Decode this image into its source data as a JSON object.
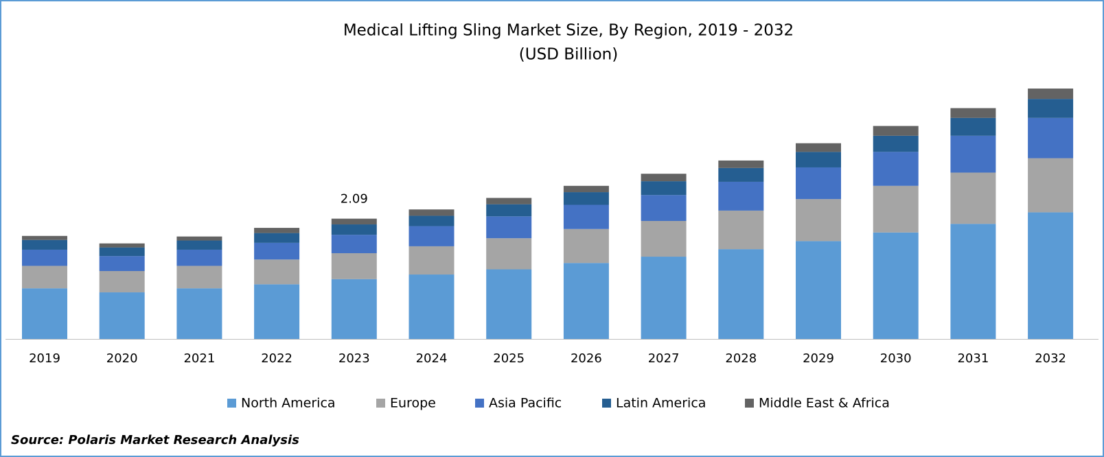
{
  "chart_data": {
    "type": "stacked_bar",
    "title": "Medical Lifting Sling Market Size, By Region, 2019 - 2032",
    "subtitle": "(USD Billion)",
    "categories": [
      "2019",
      "2020",
      "2021",
      "2022",
      "2023",
      "2024",
      "2025",
      "2026",
      "2027",
      "2028",
      "2029",
      "2030",
      "2031",
      "2032"
    ],
    "series": [
      {
        "name": "North America",
        "color": "#5b9bd5",
        "values": [
          0.88,
          0.81,
          0.88,
          0.95,
          1.04,
          1.12,
          1.21,
          1.32,
          1.43,
          1.56,
          1.7,
          1.85,
          2.0,
          2.2
        ]
      },
      {
        "name": "Europe",
        "color": "#a5a5a5",
        "values": [
          0.39,
          0.37,
          0.39,
          0.43,
          0.45,
          0.49,
          0.54,
          0.59,
          0.62,
          0.67,
          0.73,
          0.81,
          0.89,
          0.94
        ]
      },
      {
        "name": "Asia Pacific",
        "color": "#4472c4",
        "values": [
          0.28,
          0.26,
          0.28,
          0.29,
          0.32,
          0.35,
          0.38,
          0.42,
          0.45,
          0.5,
          0.55,
          0.59,
          0.64,
          0.7
        ]
      },
      {
        "name": "Latin America",
        "color": "#255e91",
        "values": [
          0.17,
          0.15,
          0.16,
          0.17,
          0.18,
          0.18,
          0.21,
          0.22,
          0.24,
          0.24,
          0.27,
          0.28,
          0.31,
          0.33
        ]
      },
      {
        "name": "Middle East & Africa",
        "color": "#636363",
        "values": [
          0.07,
          0.07,
          0.07,
          0.09,
          0.1,
          0.11,
          0.11,
          0.11,
          0.13,
          0.13,
          0.15,
          0.17,
          0.17,
          0.18
        ]
      }
    ],
    "annotations": [
      {
        "x": "2023",
        "value": 2.09
      }
    ],
    "legend": "bottom",
    "source": "Source: Polaris Market Research Analysis"
  }
}
